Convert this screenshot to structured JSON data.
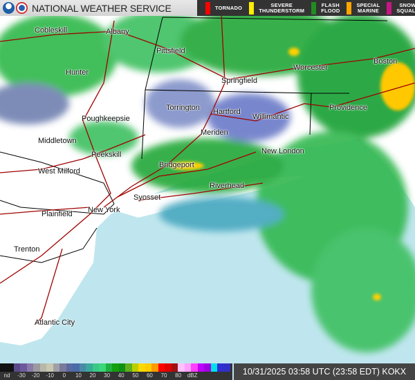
{
  "header": {
    "title": "NATIONAL WEATHER SERVICE",
    "logos": [
      "noaa-logo",
      "nws-logo"
    ]
  },
  "warnings": [
    {
      "label1": "TORNADO",
      "label2": "",
      "color": "#ff0000"
    },
    {
      "label1": "SEVERE",
      "label2": "THUNDERSTORM",
      "color": "#ffee00"
    },
    {
      "label1": "FLASH",
      "label2": "FLOOD",
      "color": "#228b22"
    },
    {
      "label1": "SPECIAL",
      "label2": "MARINE",
      "color": "#ffa500"
    },
    {
      "label1": "SNOW",
      "label2": "SQUALL",
      "color": "#c71585"
    }
  ],
  "cities": [
    {
      "name": "Cobleskill"
    },
    {
      "name": "Albany"
    },
    {
      "name": "Pittsfield"
    },
    {
      "name": "Hunter"
    },
    {
      "name": "Worcester"
    },
    {
      "name": "Boston"
    },
    {
      "name": "Springfield"
    },
    {
      "name": "Torrington"
    },
    {
      "name": "Hartford"
    },
    {
      "name": "Willimantic"
    },
    {
      "name": "Providence"
    },
    {
      "name": "Poughkeepsie"
    },
    {
      "name": "Meriden"
    },
    {
      "name": "Middletown"
    },
    {
      "name": "Peekskill"
    },
    {
      "name": "New London"
    },
    {
      "name": "Bridgeport"
    },
    {
      "name": "West Milford"
    },
    {
      "name": "Riverhead"
    },
    {
      "name": "Syosset"
    },
    {
      "name": "Plainfield"
    },
    {
      "name": "New York"
    },
    {
      "name": "Trenton"
    },
    {
      "name": "Atlantic City"
    }
  ],
  "legend": {
    "nd_label": "nd",
    "ticks": [
      "-30",
      "-20",
      "-10",
      "0",
      "10",
      "20",
      "30",
      "40",
      "50",
      "60",
      "70",
      "80",
      "dBZ"
    ],
    "colors": [
      "#5a4a8a",
      "#6e5a9a",
      "#8a7aa8",
      "#9a9aa0",
      "#b8b8a8",
      "#c8c8b0",
      "#a0a0a8",
      "#7a7a9a",
      "#5a6aa0",
      "#4a6aaa",
      "#4a8aa8",
      "#3aaa9a",
      "#3ac88a",
      "#3ad878",
      "#20b040",
      "#10a010",
      "#109010",
      "#60b020",
      "#b8d000",
      "#ffd800",
      "#ffcc00",
      "#ff9a00",
      "#ff0000",
      "#e00000",
      "#a01010",
      "#ffc0ff",
      "#ffa0ff",
      "#ff40ff",
      "#c000ff",
      "#a000e0",
      "#00e0e8",
      "#3030d0",
      "#3030c8"
    ]
  },
  "timestamp": "10/31/2025 03:58 UTC (23:58 EDT) KOKX"
}
